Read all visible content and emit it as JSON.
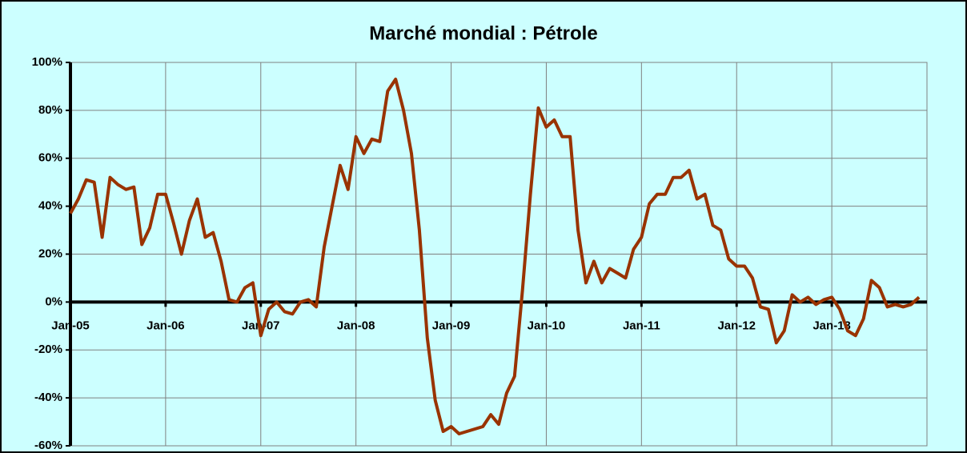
{
  "chart_data": {
    "type": "line",
    "title": "Marché mondial : Pétrole",
    "categories": [
      "Jan-05",
      null,
      null,
      null,
      null,
      null,
      null,
      null,
      null,
      null,
      null,
      null,
      "Jan-06",
      null,
      null,
      null,
      null,
      null,
      null,
      null,
      null,
      null,
      null,
      null,
      "Jan-07",
      null,
      null,
      null,
      null,
      null,
      null,
      null,
      null,
      null,
      null,
      null,
      "Jan-08",
      null,
      null,
      null,
      null,
      null,
      null,
      null,
      null,
      null,
      null,
      null,
      "Jan-09",
      null,
      null,
      null,
      null,
      null,
      null,
      null,
      null,
      null,
      null,
      null,
      "Jan-10",
      null,
      null,
      null,
      null,
      null,
      null,
      null,
      null,
      null,
      null,
      null,
      "Jan-11",
      null,
      null,
      null,
      null,
      null,
      null,
      null,
      null,
      null,
      null,
      null,
      "Jan-12",
      null,
      null,
      null,
      null,
      null,
      null,
      null,
      null,
      null,
      null,
      null,
      "Jan-13",
      null,
      null,
      null,
      null,
      null,
      null,
      null,
      null,
      null,
      null,
      null
    ],
    "values": [
      37,
      43,
      51,
      50,
      27,
      52,
      49,
      47,
      48,
      24,
      31,
      45,
      45,
      33,
      20,
      34,
      43,
      27,
      29,
      17,
      1,
      0,
      6,
      8,
      -14,
      -3,
      0,
      -4,
      -5,
      0,
      1,
      -2,
      23,
      40,
      57,
      47,
      69,
      62,
      68,
      67,
      88,
      93,
      80,
      62,
      30,
      -15,
      -41,
      -54,
      -52,
      -55,
      -54,
      -53,
      -52,
      -47,
      -51,
      -38,
      -31,
      5,
      45,
      81,
      73,
      76,
      69,
      69,
      30,
      8,
      17,
      8,
      14,
      12,
      10,
      22,
      27,
      41,
      45,
      45,
      52,
      52,
      55,
      43,
      45,
      32,
      30,
      18,
      15,
      15,
      10,
      -2,
      -3,
      -17,
      -12,
      3,
      0,
      2,
      -1,
      1,
      2,
      -3,
      -12,
      -14,
      -7,
      9,
      6,
      -2,
      -1,
      -2,
      -1,
      2
    ],
    "color": "#993300",
    "ylim": [
      -60,
      100
    ],
    "yticks": [
      {
        "value": -60,
        "label": "-60%"
      },
      {
        "value": -40,
        "label": "-40%"
      },
      {
        "value": -20,
        "label": "-20%"
      },
      {
        "value": 0,
        "label": "0%"
      },
      {
        "value": 20,
        "label": "20%"
      },
      {
        "value": 40,
        "label": "40%"
      },
      {
        "value": 60,
        "label": "60%"
      },
      {
        "value": 80,
        "label": "80%"
      },
      {
        "value": 100,
        "label": "100%"
      }
    ],
    "grid": true
  }
}
